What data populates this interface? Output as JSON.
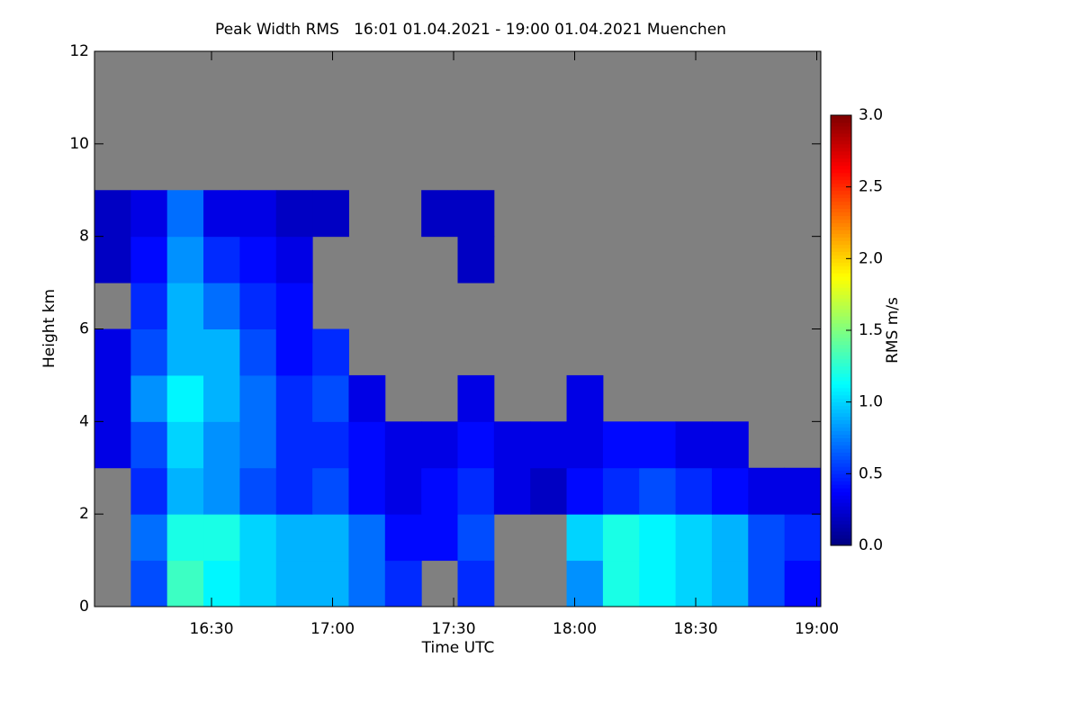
{
  "chart_data": {
    "type": "heatmap",
    "title": "Peak Width RMS   16:01 01.04.2021 - 19:00 01.04.2021 Muenchen",
    "x_label": "Time UTC",
    "y_label": "Height km",
    "colorbar_label": "RMS m/s",
    "colormap": "jet",
    "missing_color": "#808080",
    "xbins": [
      961,
      970,
      979,
      988,
      997,
      1006,
      1015,
      1024,
      1033,
      1042,
      1051,
      1060,
      1069,
      1078,
      1087,
      1096,
      1105,
      1114,
      1123,
      1132,
      1141
    ],
    "ybins": [
      0,
      1,
      2,
      3,
      4,
      5,
      6,
      7,
      8,
      9
    ],
    "values": [
      [
        null,
        0.6,
        1.3,
        1.1,
        1.0,
        0.9,
        0.9,
        0.7,
        0.5,
        null,
        0.5,
        null,
        null,
        0.8,
        1.2,
        1.1,
        1.0,
        0.9,
        0.6,
        0.4
      ],
      [
        null,
        0.7,
        1.2,
        1.2,
        1.0,
        0.9,
        0.9,
        0.7,
        0.4,
        0.4,
        0.6,
        null,
        null,
        1.0,
        1.2,
        1.1,
        1.0,
        0.9,
        0.6,
        0.5
      ],
      [
        null,
        0.5,
        0.9,
        0.8,
        0.6,
        0.5,
        0.6,
        0.4,
        0.3,
        0.4,
        0.5,
        0.3,
        0.2,
        0.4,
        0.5,
        0.6,
        0.5,
        0.4,
        0.3,
        0.3
      ],
      [
        0.3,
        0.6,
        1.0,
        0.8,
        0.7,
        0.5,
        0.5,
        0.4,
        0.3,
        0.3,
        0.4,
        0.3,
        0.3,
        0.3,
        0.4,
        0.4,
        0.3,
        0.3,
        null,
        null
      ],
      [
        0.3,
        0.8,
        1.1,
        0.9,
        0.7,
        0.5,
        0.6,
        0.3,
        null,
        null,
        0.3,
        null,
        null,
        0.3,
        null,
        null,
        null,
        null,
        null,
        null
      ],
      [
        0.3,
        0.6,
        0.9,
        0.9,
        0.6,
        0.4,
        0.5,
        null,
        null,
        null,
        null,
        null,
        null,
        null,
        null,
        null,
        null,
        null,
        null,
        null
      ],
      [
        null,
        0.5,
        0.9,
        0.7,
        0.5,
        0.4,
        null,
        null,
        null,
        null,
        null,
        null,
        null,
        null,
        null,
        null,
        null,
        null,
        null,
        null
      ],
      [
        0.2,
        0.4,
        0.8,
        0.5,
        0.4,
        0.3,
        null,
        null,
        null,
        null,
        0.2,
        null,
        null,
        null,
        null,
        null,
        null,
        null,
        null,
        null
      ],
      [
        0.2,
        0.3,
        0.7,
        0.3,
        0.3,
        0.2,
        0.2,
        null,
        null,
        0.2,
        0.2,
        null,
        null,
        null,
        null,
        null,
        null,
        null,
        null,
        null
      ]
    ],
    "xlim": [
      961,
      1141
    ],
    "xticks": [
      {
        "value": 990,
        "label": "16:30"
      },
      {
        "value": 1020,
        "label": "17:00"
      },
      {
        "value": 1050,
        "label": "17:30"
      },
      {
        "value": 1080,
        "label": "18:00"
      },
      {
        "value": 1110,
        "label": "18:30"
      },
      {
        "value": 1140,
        "label": "19:00"
      }
    ],
    "ylim": [
      0,
      12
    ],
    "yticks": [
      0,
      2,
      4,
      6,
      8,
      10,
      12
    ],
    "clim": [
      0,
      3
    ],
    "cticks": [
      {
        "value": 0,
        "label": "0.0"
      },
      {
        "value": 0.5,
        "label": "0.5"
      },
      {
        "value": 1,
        "label": "1.0"
      },
      {
        "value": 1.5,
        "label": "1.5"
      },
      {
        "value": 2,
        "label": "2.0"
      },
      {
        "value": 2.5,
        "label": "2.5"
      },
      {
        "value": 3,
        "label": "3.0"
      }
    ]
  }
}
